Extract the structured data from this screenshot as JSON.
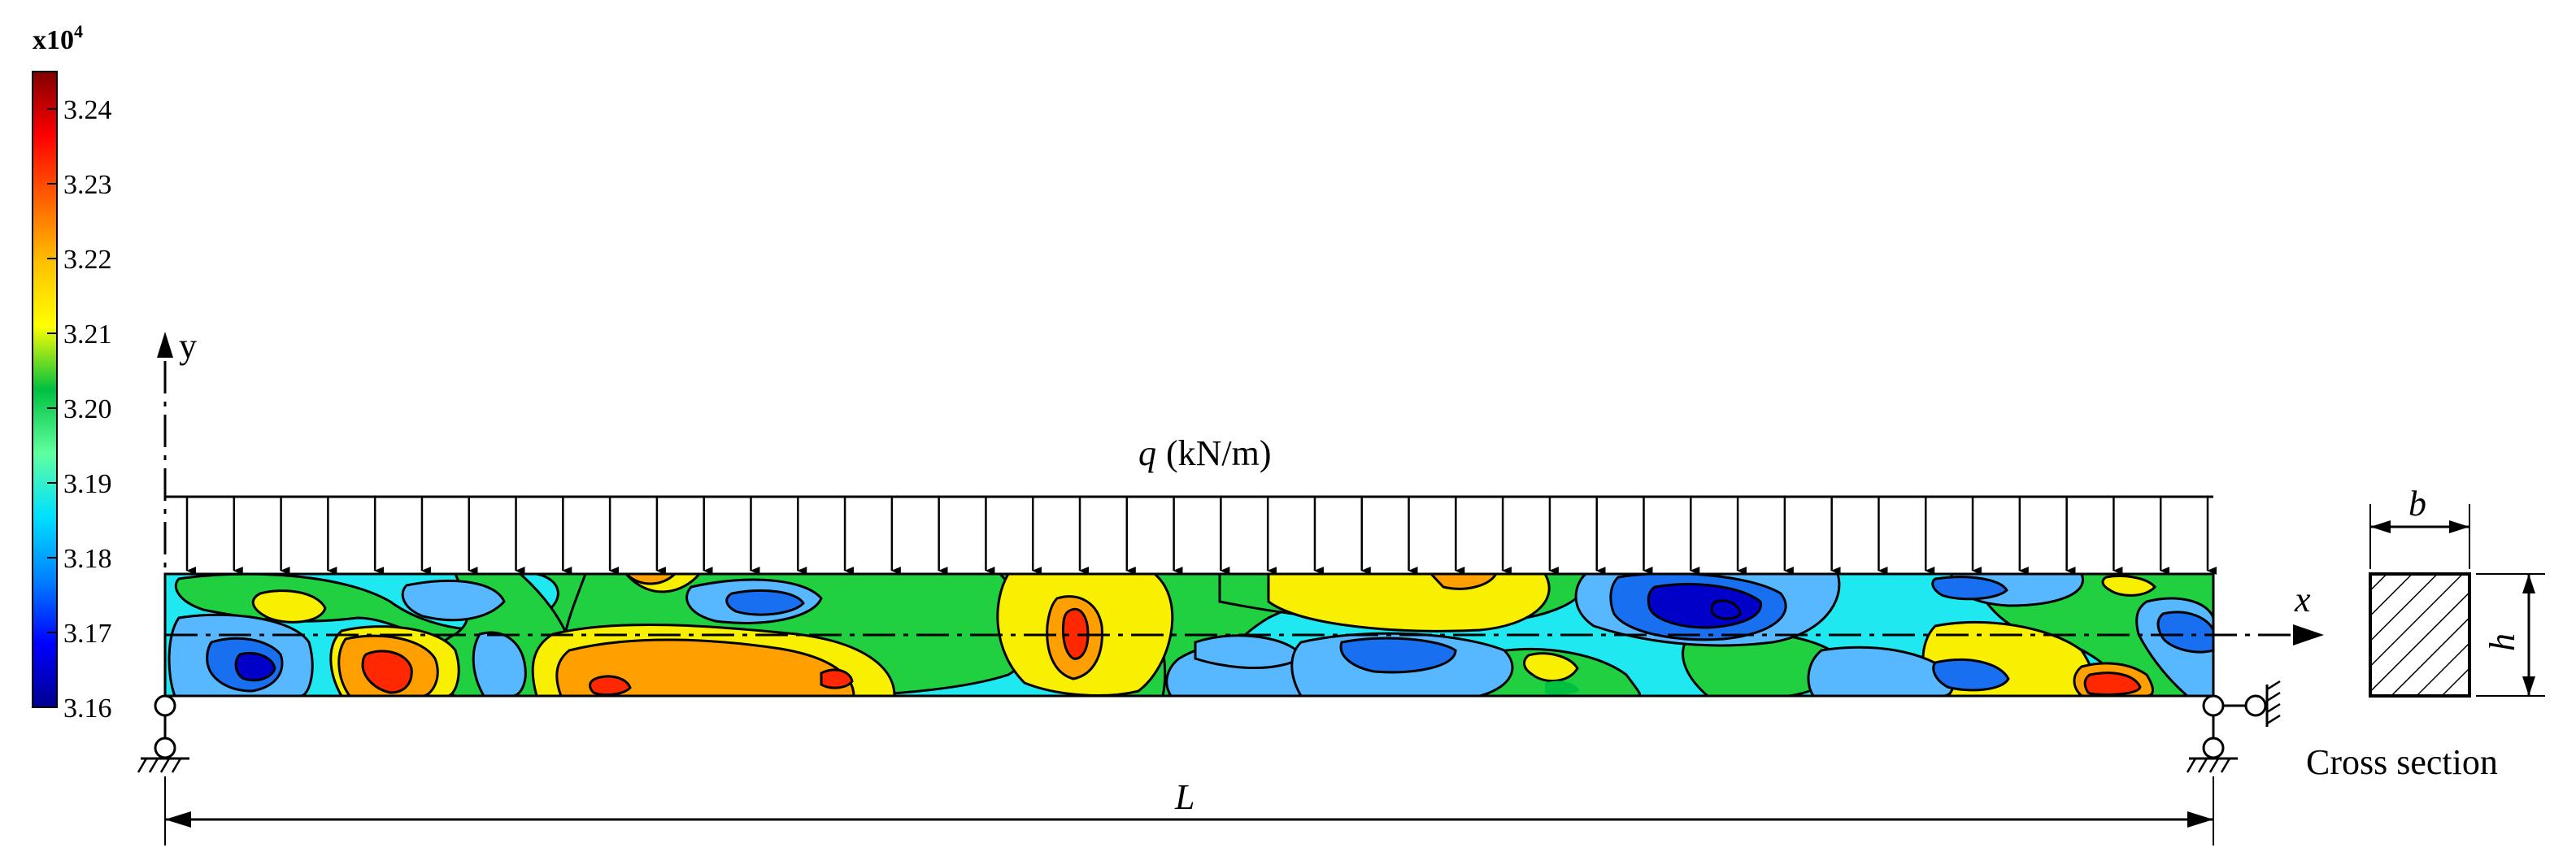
{
  "colorbar": {
    "multiplier_base": "x10",
    "multiplier_exp": "4",
    "ticks": [
      "3.24",
      "3.23",
      "3.22",
      "3.21",
      "3.20",
      "3.19",
      "3.18",
      "3.17",
      "3.16"
    ],
    "range": [
      3.16,
      3.245
    ],
    "colormap": [
      "#00008f",
      "#0000ff",
      "#0080ff",
      "#00e0ff",
      "#60ff9f",
      "#00c040",
      "#ffff00",
      "#ffc000",
      "#ff6000",
      "#ff0000",
      "#800000"
    ]
  },
  "axes": {
    "y_label": "y",
    "x_label": "x"
  },
  "load": {
    "symbol": "q",
    "unit": "(kN/m)"
  },
  "span": {
    "label": "L"
  },
  "cross_section": {
    "width_label": "b",
    "height_label": "h",
    "caption": "Cross section"
  },
  "field_colors": {
    "darkblue": "#0000c8",
    "blue": "#1870f0",
    "lightblue": "#58b8ff",
    "cyan": "#20e8f0",
    "green": "#20d040",
    "yellow": "#f8f000",
    "orange": "#ffa000",
    "red": "#ff2800"
  }
}
